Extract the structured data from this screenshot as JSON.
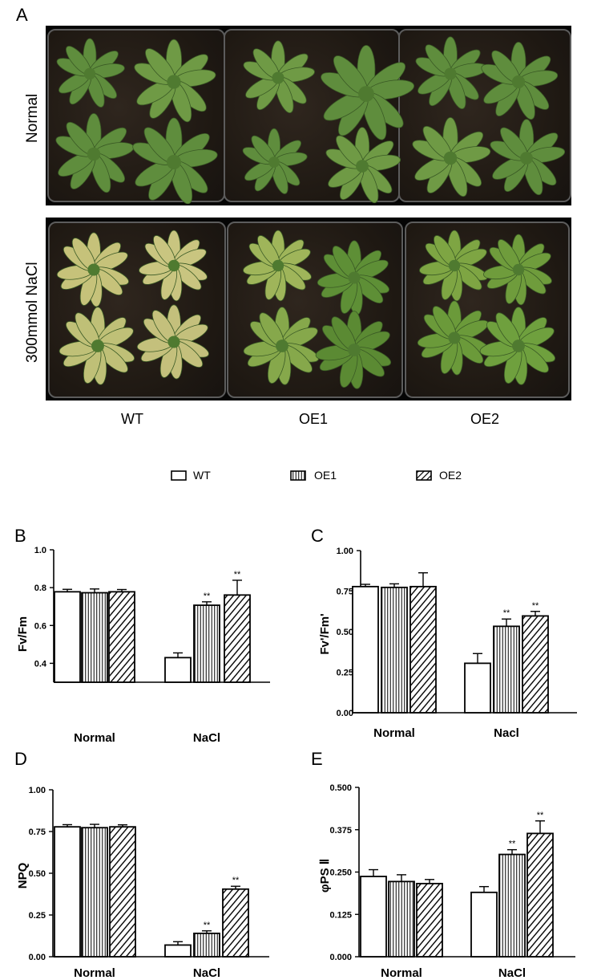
{
  "panel_a": {
    "letter": "A",
    "row_labels": [
      "Normal",
      "300mmol NaCl"
    ],
    "genotype_labels": [
      "WT",
      "OE1",
      "OE2"
    ]
  },
  "legend": [
    {
      "name": "WT",
      "pattern": "plain"
    },
    {
      "name": "OE1",
      "pattern": "vertical"
    },
    {
      "name": "OE2",
      "pattern": "diagonal"
    }
  ],
  "chart_data": [
    {
      "id": "B",
      "letter": "B",
      "type": "bar",
      "ylabel": "Fv/Fm",
      "ylim": [
        0.3,
        1.0
      ],
      "yticks": [
        "0.4",
        "0.6",
        "0.8",
        "1.0"
      ],
      "ytick_values": [
        0.4,
        0.6,
        0.8,
        1.0
      ],
      "categories": [
        "Normal",
        "NaCl"
      ],
      "series": [
        {
          "name": "WT",
          "values": [
            0.778,
            0.43
          ],
          "errors": [
            0.013,
            0.025
          ],
          "sig": [
            "",
            ""
          ]
        },
        {
          "name": "OE1",
          "values": [
            0.773,
            0.707
          ],
          "errors": [
            0.02,
            0.018
          ],
          "sig": [
            "",
            "**"
          ]
        },
        {
          "name": "OE2",
          "values": [
            0.778,
            0.761
          ],
          "errors": [
            0.012,
            0.078
          ],
          "sig": [
            "",
            "**"
          ]
        }
      ]
    },
    {
      "id": "C",
      "letter": "C",
      "type": "bar",
      "ylabel": "Fv'/Fm'",
      "ylim": [
        0.0,
        1.0
      ],
      "yticks": [
        "0.00",
        "0.25",
        "0.50",
        "0.75",
        "1.00"
      ],
      "ytick_values": [
        0.0,
        0.25,
        0.5,
        0.75,
        1.0
      ],
      "categories": [
        "Normal",
        "Nacl"
      ],
      "series": [
        {
          "name": "WT",
          "values": [
            0.778,
            0.305
          ],
          "errors": [
            0.014,
            0.06
          ],
          "sig": [
            "",
            ""
          ]
        },
        {
          "name": "OE1",
          "values": [
            0.773,
            0.533
          ],
          "errors": [
            0.022,
            0.045
          ],
          "sig": [
            "",
            "**"
          ]
        },
        {
          "name": "OE2",
          "values": [
            0.778,
            0.597
          ],
          "errors": [
            0.085,
            0.028
          ],
          "sig": [
            "",
            "**"
          ]
        }
      ]
    },
    {
      "id": "D",
      "letter": "D",
      "type": "bar",
      "ylabel": "NPQ",
      "ylim": [
        0.0,
        1.0
      ],
      "yticks": [
        "0.00",
        "0.25",
        "0.50",
        "0.75",
        "1.00"
      ],
      "ytick_values": [
        0.0,
        0.25,
        0.5,
        0.75,
        1.0
      ],
      "categories": [
        "Normal",
        "NaCl"
      ],
      "series": [
        {
          "name": "WT",
          "values": [
            0.778,
            0.07
          ],
          "errors": [
            0.013,
            0.02
          ],
          "sig": [
            "",
            ""
          ]
        },
        {
          "name": "OE1",
          "values": [
            0.773,
            0.14
          ],
          "errors": [
            0.02,
            0.015
          ],
          "sig": [
            "",
            "**"
          ]
        },
        {
          "name": "OE2",
          "values": [
            0.778,
            0.405
          ],
          "errors": [
            0.012,
            0.017
          ],
          "sig": [
            "",
            "**"
          ]
        }
      ]
    },
    {
      "id": "E",
      "letter": "E",
      "type": "bar",
      "ylabel": "φPS Ⅱ",
      "ylim": [
        0.0,
        0.5
      ],
      "yticks": [
        "0.000",
        "0.125",
        "0.250",
        "0.375",
        "0.500"
      ],
      "ytick_values": [
        0.0,
        0.125,
        0.25,
        0.375,
        0.5
      ],
      "categories": [
        "Normal",
        "NaCl"
      ],
      "series": [
        {
          "name": "WT",
          "values": [
            0.237,
            0.19
          ],
          "errors": [
            0.02,
            0.017
          ],
          "sig": [
            "",
            ""
          ]
        },
        {
          "name": "OE1",
          "values": [
            0.222,
            0.302
          ],
          "errors": [
            0.02,
            0.014
          ],
          "sig": [
            "",
            "**"
          ]
        },
        {
          "name": "OE2",
          "values": [
            0.216,
            0.364
          ],
          "errors": [
            0.012,
            0.037
          ],
          "sig": [
            "",
            "**"
          ]
        }
      ]
    }
  ]
}
